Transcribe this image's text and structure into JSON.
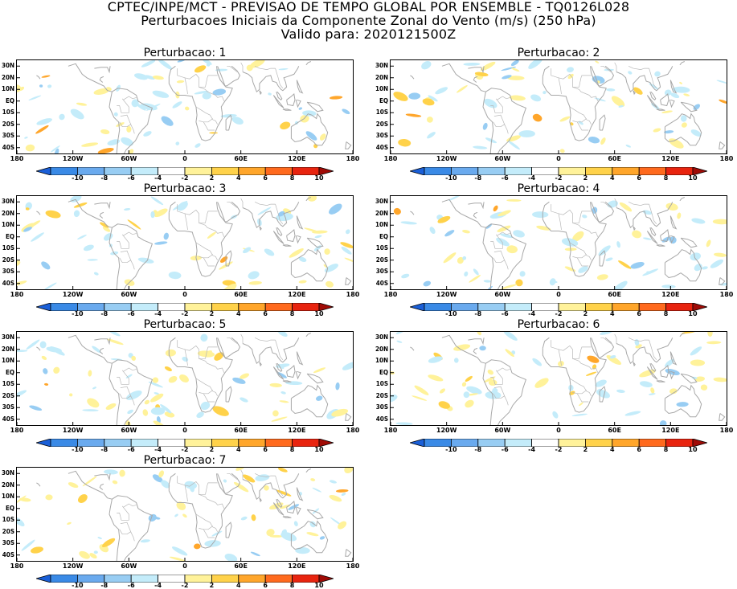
{
  "header": {
    "line1": "CPTEC/INPE/MCT - PREVISAO DE TEMPO GLOBAL POR ENSEMBLE - TQ0126L028",
    "line2": "Perturbacoes Iniciais da Componente Zonal do Vento (m/s) (250 hPa)",
    "line3": "Valido para: 2020121500Z"
  },
  "lat_labels": [
    "30N",
    "20N",
    "10N",
    "EQ",
    "10S",
    "20S",
    "30S",
    "40S"
  ],
  "lon_labels": [
    "180",
    "120W",
    "60W",
    "0",
    "60E",
    "120E",
    "180"
  ],
  "colorbar": {
    "ticks": [
      "-10",
      "-8",
      "-6",
      "-4",
      "-2",
      "2",
      "4",
      "6",
      "8",
      "10"
    ],
    "colors": [
      "#1a5fd8",
      "#3a8ae6",
      "#6aaaee",
      "#98cdf3",
      "#c4ecfa",
      "#ffffff",
      "#fff29a",
      "#ffd24a",
      "#ffa62b",
      "#ff6a1e",
      "#e8240f",
      "#a00b06"
    ]
  },
  "panels": [
    {
      "title": "Perturbacao: 1"
    },
    {
      "title": "Perturbacao: 2"
    },
    {
      "title": "Perturbacao: 3"
    },
    {
      "title": "Perturbacao: 4"
    },
    {
      "title": "Perturbacao: 5"
    },
    {
      "title": "Perturbacao: 6"
    },
    {
      "title": "Perturbacao: 7"
    }
  ]
}
